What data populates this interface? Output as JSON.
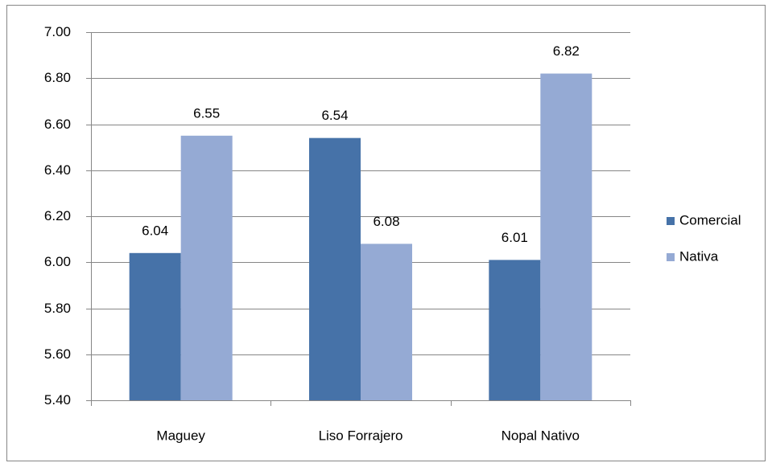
{
  "chart_data": {
    "type": "bar",
    "categories": [
      "Maguey",
      "Liso Forrajero",
      "Nopal Nativo"
    ],
    "series": [
      {
        "name": "Comercial",
        "color": "#4672a8",
        "values": [
          6.04,
          6.54,
          6.01
        ]
      },
      {
        "name": "Nativa",
        "color": "#95aad4",
        "values": [
          6.55,
          6.08,
          6.82
        ]
      }
    ],
    "ylim": [
      5.4,
      7.0
    ],
    "yticks": [
      {
        "value": 5.4,
        "label": "5.40"
      },
      {
        "value": 5.6,
        "label": "5.60"
      },
      {
        "value": 5.8,
        "label": "5.80"
      },
      {
        "value": 6.0,
        "label": "6.00"
      },
      {
        "value": 6.2,
        "label": "6.20"
      },
      {
        "value": 6.4,
        "label": "6.40"
      },
      {
        "value": 6.6,
        "label": "6.60"
      },
      {
        "value": 6.8,
        "label": "6.80"
      },
      {
        "value": 7.0,
        "label": "7.00"
      }
    ],
    "grid": true,
    "legend": "right"
  }
}
